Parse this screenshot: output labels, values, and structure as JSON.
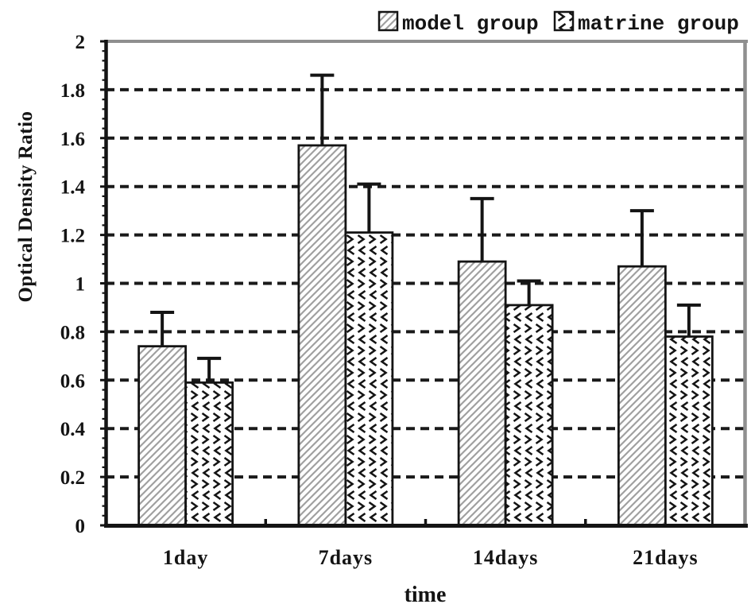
{
  "chart_data": {
    "type": "bar",
    "title": "",
    "xlabel": "time",
    "ylabel": "Optical Density Ratio",
    "categories": [
      "1day",
      "7days",
      "14days",
      "21days"
    ],
    "series": [
      {
        "name": "model group",
        "pattern": "diagonal-hatch",
        "values": [
          0.74,
          1.57,
          1.09,
          1.07
        ],
        "errors_upper": [
          0.14,
          0.29,
          0.26,
          0.23
        ]
      },
      {
        "name": "matrine group",
        "pattern": "scale-chevrons",
        "values": [
          0.59,
          1.21,
          0.91,
          0.78
        ],
        "errors_upper": [
          0.1,
          0.2,
          0.1,
          0.13
        ]
      }
    ],
    "ylim": [
      0,
      2
    ],
    "ytick_step": 0.2,
    "ytick_labels": [
      "0",
      "0.2",
      "0.4",
      "0.6",
      "0.8",
      "1",
      "1.2",
      "1.4",
      "1.6",
      "1.8",
      "2"
    ],
    "grid": "horizontal-dashed",
    "error_bars": "upper-only",
    "legend_position": "top-right-above-plot"
  },
  "colors": {
    "background": "#ffffff",
    "ink": "#141414",
    "hatch_line": "#a0a0a0",
    "grid_line": "#1a1a1a",
    "border_shadow": "#8f8f8f"
  }
}
